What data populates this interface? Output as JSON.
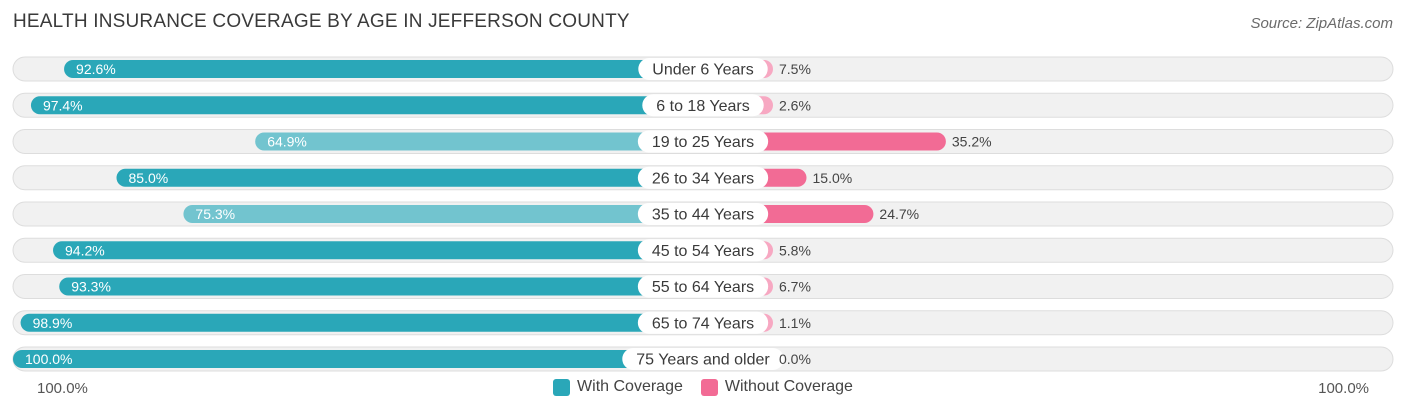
{
  "header": {
    "title": "HEALTH INSURANCE COVERAGE BY AGE IN JEFFERSON COUNTY",
    "source": "Source: ZipAtlas.com"
  },
  "colors": {
    "with_strong": "#2aa7b8",
    "with_light": "#72c4cf",
    "without_strong": "#f26b95",
    "without_light": "#f7a8c2",
    "row_bg": "#f1f1f1",
    "row_border": "#dddddd"
  },
  "chart_data": {
    "type": "bar",
    "orientation": "horizontal-diverging",
    "title": "HEALTH INSURANCE COVERAGE BY AGE IN JEFFERSON COUNTY",
    "categories": [
      "Under 6 Years",
      "6 to 18 Years",
      "19 to 25 Years",
      "26 to 34 Years",
      "35 to 44 Years",
      "45 to 54 Years",
      "55 to 64 Years",
      "65 to 74 Years",
      "75 Years and older"
    ],
    "series": [
      {
        "name": "With Coverage",
        "values": [
          92.6,
          97.4,
          64.9,
          85.0,
          75.3,
          94.2,
          93.3,
          98.9,
          100.0
        ],
        "labels": [
          "92.6%",
          "97.4%",
          "64.9%",
          "85.0%",
          "75.3%",
          "94.2%",
          "93.3%",
          "98.9%",
          "100.0%"
        ]
      },
      {
        "name": "Without Coverage",
        "values": [
          7.5,
          2.6,
          35.2,
          15.0,
          24.7,
          5.8,
          6.7,
          1.1,
          0.0
        ],
        "labels": [
          "7.5%",
          "2.6%",
          "35.2%",
          "15.0%",
          "24.7%",
          "5.8%",
          "6.7%",
          "1.1%",
          "0.0%"
        ]
      }
    ],
    "axis": {
      "left_tick": "100.0%",
      "right_tick": "100.0%",
      "range": [
        0,
        100
      ]
    },
    "legend": {
      "position": "bottom-center",
      "items": [
        "With Coverage",
        "Without Coverage"
      ]
    }
  }
}
